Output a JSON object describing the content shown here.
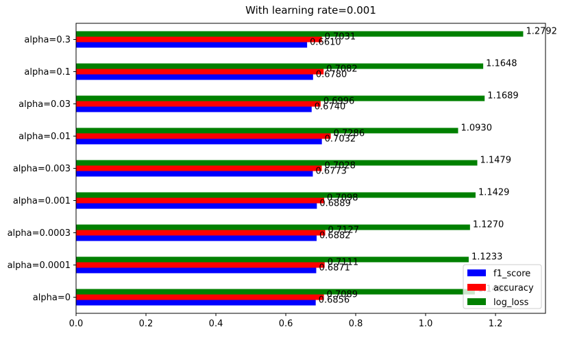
{
  "chart_data": {
    "type": "bar",
    "orientation": "horizontal",
    "title": "With learning rate=0.001",
    "xlabel": "",
    "ylabel": "",
    "categories": [
      "alpha=0",
      "alpha=0.0001",
      "alpha=0.0003",
      "alpha=0.001",
      "alpha=0.003",
      "alpha=0.01",
      "alpha=0.03",
      "alpha=0.1",
      "alpha=0.3"
    ],
    "series": [
      {
        "name": "f1_score",
        "color": "#0000ff",
        "values": [
          0.6856,
          0.6871,
          0.6882,
          0.6889,
          0.6773,
          0.7032,
          0.674,
          0.678,
          0.661
        ],
        "labels": [
          "0.6856",
          "0.6871",
          "0.6882",
          "0.6889",
          "0.6773",
          "0.7032",
          "0.6740",
          "0.6780",
          "0.6610"
        ]
      },
      {
        "name": "accuracy",
        "color": "#ff0000",
        "values": [
          0.7089,
          0.7111,
          0.7127,
          0.7098,
          0.7028,
          0.7286,
          0.6996,
          0.7082,
          0.7031
        ],
        "labels": [
          "0.7089",
          "0.7111",
          "0.7127",
          "0.7098",
          "0.7028",
          "0.7286",
          "0.6996",
          "0.7082",
          "0.7031"
        ]
      },
      {
        "name": "log_loss",
        "color": "#008000",
        "values": [
          1.1408,
          1.1233,
          1.127,
          1.1429,
          1.1479,
          1.093,
          1.1689,
          1.1648,
          1.2792
        ],
        "labels": [
          "1.1408",
          "1.1233",
          "1.1270",
          "1.1429",
          "1.1479",
          "1.0930",
          "1.1689",
          "1.1648",
          "1.2792"
        ]
      }
    ],
    "xlim": [
      0,
      1.343
    ],
    "xticks": [
      0.0,
      0.2,
      0.4,
      0.6,
      0.8,
      1.0,
      1.2
    ],
    "xtick_labels": [
      "0.0",
      "0.2",
      "0.4",
      "0.6",
      "0.8",
      "1.0",
      "1.2"
    ],
    "grid": false,
    "legend_position": "lower-right"
  }
}
